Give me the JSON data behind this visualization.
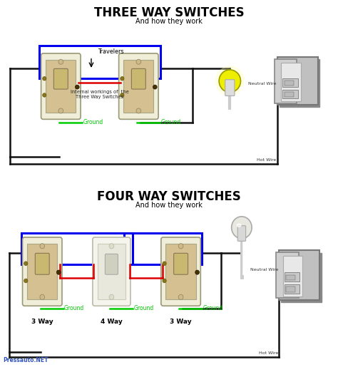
{
  "bg_outer": "#ffffff",
  "bg_panel": "#aaaaaa",
  "title1": "THREE WAY SWITCHES",
  "subtitle1": "And how they work",
  "title2": "FOUR WAY SWITCHES",
  "subtitle2": "And how they work",
  "ground_color": "#00cc00",
  "blue_wire": "#0000ee",
  "red_wire": "#dd0000",
  "black_wire": "#111111",
  "white_wire": "#ffffff",
  "switch_fill": "#d4c090",
  "switch_fill2": "#e8e8dc",
  "label_3way_left": "3 Way",
  "label_4way": "4 Way",
  "label_3way_right": "3 Way",
  "travelers_label": "Travelers",
  "ground_label": "Ground",
  "neutral_wire_label": "Neutral Wire",
  "hot_wire_label": "Hot Wire",
  "internal_label": "Internal workings of  the\nThree Way Switches",
  "watermark": "Pressauto.NET",
  "bulb_yellow": "#eeee00",
  "panel_face": "#c0c0c0",
  "panel_dark": "#909090",
  "panel_white": "#e8e8e8",
  "lw_wire": 1.8,
  "lw_wire_thick": 2.2
}
